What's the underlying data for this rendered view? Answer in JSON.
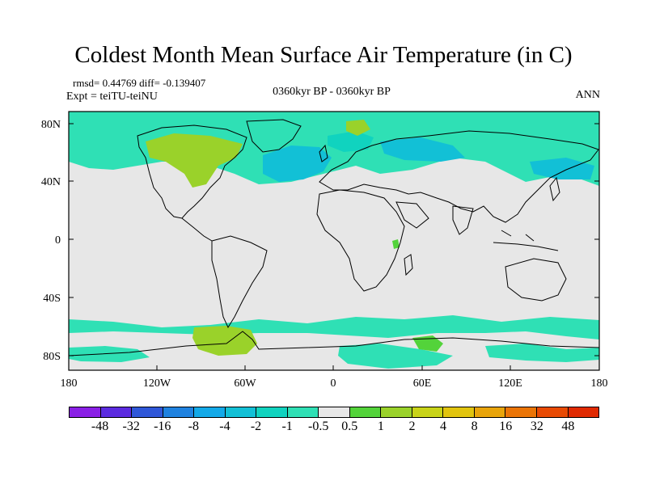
{
  "title": "Coldest Month Mean Surface Air Temperature (in C)",
  "stats": "rmsd= 0.44769 diff= -0.139407",
  "experiment": "Expt = teiTU-teiNU",
  "period": "0360kyr BP - 0360kyr BP",
  "season": "ANN",
  "lat_labels": [
    "80N",
    "40N",
    "0",
    "40S",
    "80S"
  ],
  "lon_labels": [
    "180",
    "120W",
    "60W",
    "0",
    "60E",
    "120E",
    "180"
  ],
  "colorbar": {
    "labels": [
      "-48",
      "-32",
      "-16",
      "-8",
      "-4",
      "-2",
      "-1",
      "-0.5",
      "0.5",
      "1",
      "2",
      "4",
      "8",
      "16",
      "32",
      "48"
    ],
    "colors": [
      "#8a1fe6",
      "#5b2be0",
      "#2f57d8",
      "#1f82e0",
      "#13a9e8",
      "#12c0d6",
      "#10d3bf",
      "#2fe0b5",
      "#e7e7e7",
      "#53d33a",
      "#9ad22a",
      "#c8d318",
      "#e1c40e",
      "#e8a40a",
      "#ea7406",
      "#e84a04",
      "#e02a02"
    ]
  },
  "colors": {
    "land_bg": "#e7e7e7",
    "cold_light": "#2fe0b5",
    "cold_mid": "#10d3bf",
    "cold_deep": "#12c0d6",
    "warm_light": "#53d33a",
    "warm_mid": "#9ad22a"
  }
}
